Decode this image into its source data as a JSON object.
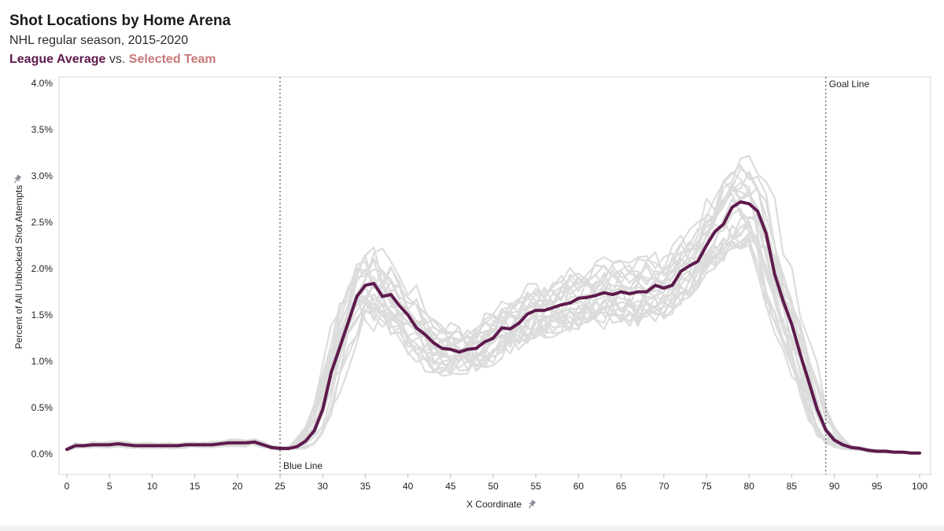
{
  "header": {
    "title": "Shot Locations by Home Arena",
    "subtitle": "NHL regular season, 2015-2020",
    "legend_avg": "League Average",
    "legend_vs": "vs.",
    "legend_sel": "Selected Team"
  },
  "colors": {
    "average": "#5e1a4d",
    "selected": "#c87878",
    "teams": "#dcdcdc",
    "reference": "#555555"
  },
  "icons": {
    "pin": "pin-icon"
  },
  "chart_data": {
    "type": "line",
    "xlabel": "X Coordinate",
    "ylabel": "Percent of All Unblocked Shot Attempts",
    "xlim": [
      0,
      100
    ],
    "ylim": [
      0,
      4.0
    ],
    "x_ticks": [
      0,
      5,
      10,
      15,
      20,
      25,
      30,
      35,
      40,
      45,
      50,
      55,
      60,
      65,
      70,
      75,
      80,
      85,
      90,
      95,
      100
    ],
    "y_ticks": [
      0,
      0.5,
      1.0,
      1.5,
      2.0,
      2.5,
      3.0,
      3.5,
      4.0
    ],
    "y_tick_labels": [
      "0.0%",
      "0.5%",
      "1.0%",
      "1.5%",
      "2.0%",
      "2.5%",
      "3.0%",
      "3.5%",
      "4.0%"
    ],
    "grid": false,
    "reference_lines": [
      {
        "x": 25,
        "label": "Blue Line"
      },
      {
        "x": 89,
        "label": "Goal Line"
      }
    ],
    "x": [
      0,
      1,
      2,
      3,
      4,
      5,
      6,
      7,
      8,
      9,
      10,
      11,
      12,
      13,
      14,
      15,
      16,
      17,
      18,
      19,
      20,
      21,
      22,
      23,
      24,
      25,
      26,
      27,
      28,
      29,
      30,
      31,
      32,
      33,
      34,
      35,
      36,
      37,
      38,
      39,
      40,
      41,
      42,
      43,
      44,
      45,
      46,
      47,
      48,
      49,
      50,
      51,
      52,
      53,
      54,
      55,
      56,
      57,
      58,
      59,
      60,
      61,
      62,
      63,
      64,
      65,
      66,
      67,
      68,
      69,
      70,
      71,
      72,
      73,
      74,
      75,
      76,
      77,
      78,
      79,
      80,
      81,
      82,
      83,
      84,
      85,
      86,
      87,
      88,
      89,
      90,
      91,
      92,
      93,
      94,
      95,
      96,
      97,
      98,
      99,
      100
    ],
    "series": [
      {
        "name": "League Average",
        "values": [
          0.05,
          0.09,
          0.09,
          0.1,
          0.1,
          0.1,
          0.11,
          0.1,
          0.09,
          0.09,
          0.09,
          0.09,
          0.09,
          0.09,
          0.1,
          0.1,
          0.1,
          0.1,
          0.11,
          0.12,
          0.12,
          0.12,
          0.13,
          0.1,
          0.07,
          0.06,
          0.06,
          0.08,
          0.14,
          0.25,
          0.48,
          0.88,
          1.15,
          1.42,
          1.7,
          1.82,
          1.84,
          1.7,
          1.72,
          1.6,
          1.5,
          1.36,
          1.29,
          1.2,
          1.14,
          1.13,
          1.1,
          1.13,
          1.14,
          1.21,
          1.25,
          1.36,
          1.35,
          1.41,
          1.51,
          1.55,
          1.55,
          1.58,
          1.61,
          1.63,
          1.68,
          1.69,
          1.71,
          1.74,
          1.72,
          1.75,
          1.73,
          1.75,
          1.75,
          1.82,
          1.79,
          1.82,
          1.97,
          2.03,
          2.08,
          2.25,
          2.4,
          2.48,
          2.66,
          2.72,
          2.7,
          2.62,
          2.38,
          1.94,
          1.65,
          1.4,
          1.08,
          0.78,
          0.48,
          0.26,
          0.15,
          0.1,
          0.07,
          0.06,
          0.04,
          0.03,
          0.03,
          0.02,
          0.02,
          0.01,
          0.01
        ]
      }
    ]
  }
}
